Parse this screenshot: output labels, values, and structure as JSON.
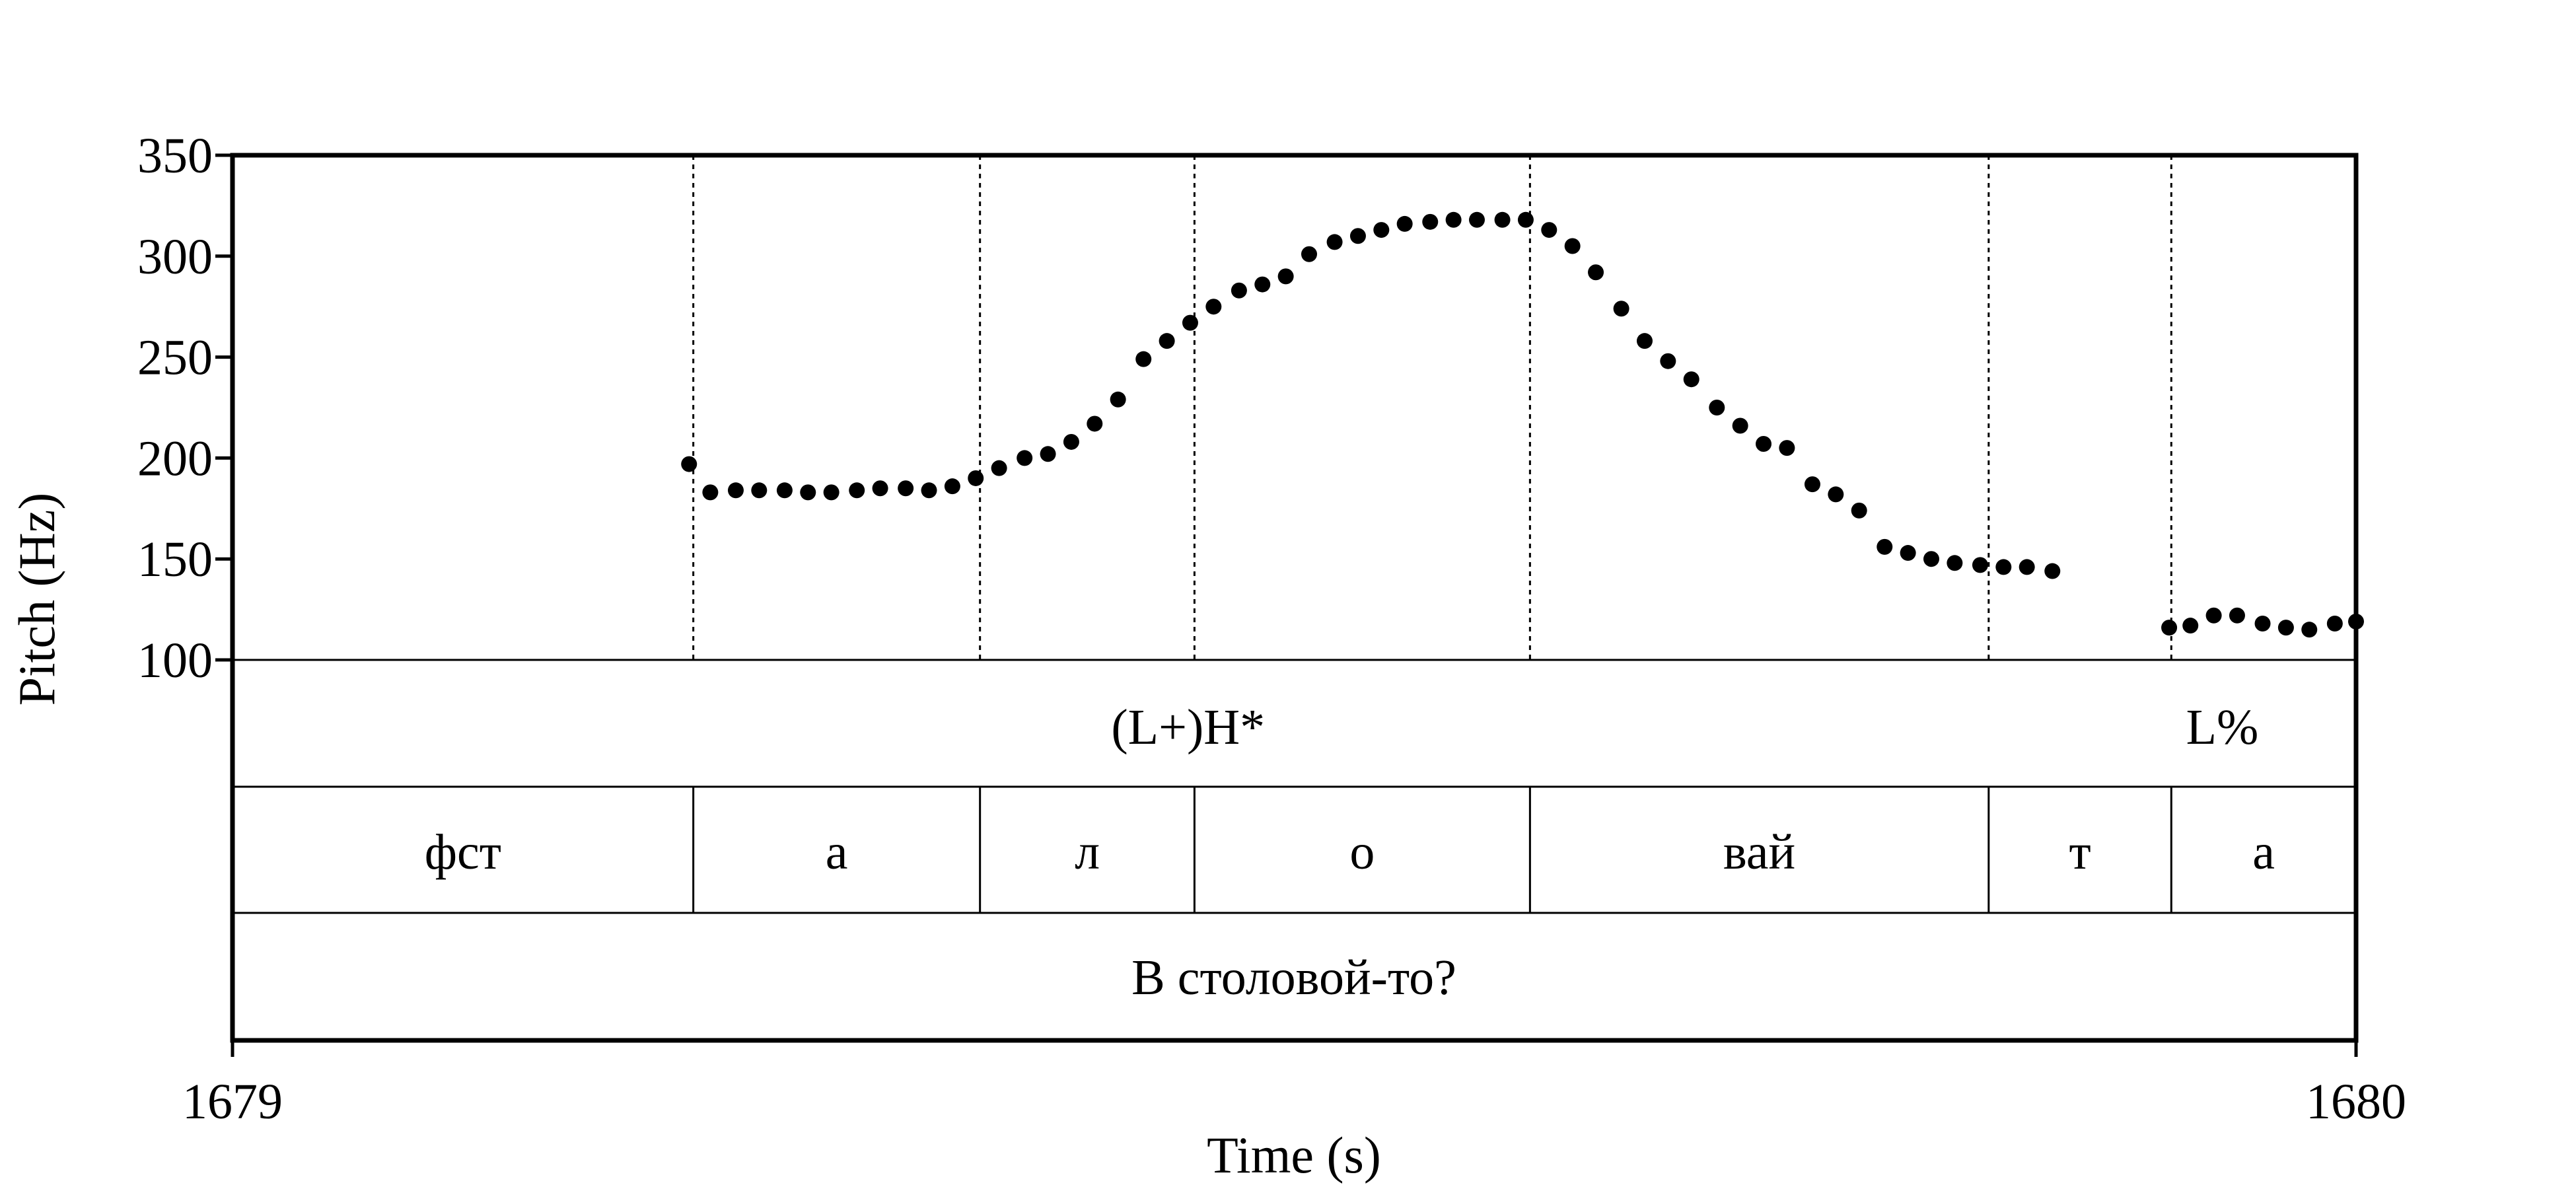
{
  "chart_data": {
    "type": "scatter",
    "xlabel": "Time (s)",
    "ylabel": "Pitch (Hz)",
    "xlim": [
      1679,
      1680
    ],
    "ylim": [
      100,
      350
    ],
    "x_ticks": [
      "1679",
      "1680"
    ],
    "y_ticks": [
      100,
      150,
      200,
      250,
      300,
      350
    ],
    "y_tick_labels": [
      "100",
      "150",
      "200",
      "250",
      "300",
      "350"
    ],
    "grid": false,
    "boundaries": [
      1679.217,
      1679.352,
      1679.453,
      1679.611,
      1679.827,
      1679.913
    ],
    "tones": [
      {
        "label": "(L+)H*",
        "time": 1679.45
      },
      {
        "label": "L%",
        "time": 1679.937
      }
    ],
    "segments": [
      {
        "label": "фст",
        "start": 1679.0,
        "end": 1679.217
      },
      {
        "label": "а",
        "start": 1679.217,
        "end": 1679.352
      },
      {
        "label": "л",
        "start": 1679.352,
        "end": 1679.453
      },
      {
        "label": "о",
        "start": 1679.453,
        "end": 1679.611
      },
      {
        "label": "вай",
        "start": 1679.611,
        "end": 1679.827
      },
      {
        "label": "т",
        "start": 1679.827,
        "end": 1679.913
      },
      {
        "label": "а",
        "start": 1679.913,
        "end": 1680.0
      }
    ],
    "sentence": {
      "label": "В столовой-то?",
      "start": 1679.0,
      "end": 1680.0
    },
    "series": [
      {
        "points": [
          [
            1679.215,
            197
          ],
          [
            1679.225,
            183
          ],
          [
            1679.237,
            184
          ],
          [
            1679.248,
            184
          ],
          [
            1679.26,
            184
          ],
          [
            1679.271,
            183
          ],
          [
            1679.282,
            183
          ],
          [
            1679.294,
            184
          ],
          [
            1679.305,
            185
          ],
          [
            1679.317,
            185
          ],
          [
            1679.328,
            184
          ],
          [
            1679.339,
            186
          ],
          [
            1679.35,
            190
          ],
          [
            1679.361,
            195
          ],
          [
            1679.373,
            200
          ],
          [
            1679.384,
            202
          ],
          [
            1679.395,
            208
          ],
          [
            1679.406,
            217
          ],
          [
            1679.417,
            229
          ],
          [
            1679.429,
            249
          ],
          [
            1679.44,
            258
          ],
          [
            1679.451,
            267
          ],
          [
            1679.462,
            275
          ],
          [
            1679.474,
            283
          ],
          [
            1679.485,
            286
          ],
          [
            1679.496,
            290
          ],
          [
            1679.507,
            301
          ],
          [
            1679.519,
            307
          ],
          [
            1679.53,
            310
          ],
          [
            1679.541,
            313
          ],
          [
            1679.552,
            316
          ],
          [
            1679.564,
            317
          ],
          [
            1679.575,
            318
          ],
          [
            1679.586,
            318
          ],
          [
            1679.598,
            318
          ],
          [
            1679.609,
            318
          ],
          [
            1679.62,
            313
          ],
          [
            1679.631,
            305
          ],
          [
            1679.642,
            292
          ],
          [
            1679.654,
            274
          ],
          [
            1679.665,
            258
          ],
          [
            1679.676,
            248
          ],
          [
            1679.687,
            239
          ],
          [
            1679.699,
            225
          ],
          [
            1679.71,
            216
          ],
          [
            1679.721,
            207
          ],
          [
            1679.732,
            205
          ],
          [
            1679.744,
            187
          ],
          [
            1679.755,
            182
          ],
          [
            1679.766,
            174
          ],
          [
            1679.778,
            156
          ],
          [
            1679.789,
            153
          ],
          [
            1679.8,
            150
          ],
          [
            1679.811,
            148
          ],
          [
            1679.823,
            147
          ],
          [
            1679.834,
            146
          ],
          [
            1679.845,
            146
          ],
          [
            1679.857,
            144
          ],
          [
            1679.912,
            116
          ],
          [
            1679.922,
            117
          ],
          [
            1679.933,
            122
          ],
          [
            1679.944,
            122
          ],
          [
            1679.956,
            118
          ],
          [
            1679.967,
            116
          ],
          [
            1679.978,
            115
          ],
          [
            1679.99,
            118
          ],
          [
            1680.0,
            119
          ]
        ]
      }
    ]
  }
}
